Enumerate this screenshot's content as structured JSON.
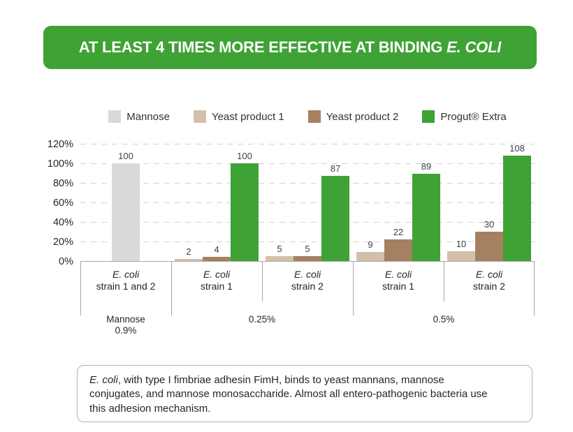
{
  "banner": {
    "prefix": "AT LEAST 4 TIMES MORE EFFECTIVE AT BINDING ",
    "italic": "E. COLI",
    "background": "#3fa235",
    "text_color": "#ffffff"
  },
  "chart_data": {
    "type": "bar",
    "title": "",
    "xlabel": "",
    "ylabel": "",
    "ylim": [
      0,
      120
    ],
    "ytick_step": 20,
    "ytick_suffix": "%",
    "grid": true,
    "legend_position": "top",
    "legend": [
      {
        "name": "Mannose",
        "color": "#d9d9d9"
      },
      {
        "name": "Yeast product 1",
        "color": "#d2c0ab"
      },
      {
        "name": "Yeast product 2",
        "color": "#a58061"
      },
      {
        "name": "Progut® Extra",
        "color": "#3fa235"
      }
    ],
    "groups": [
      {
        "label_italic": "E. coli",
        "label_line2": "strain 1 and 2",
        "bars": [
          {
            "series": "Mannose",
            "value": 100
          }
        ]
      },
      {
        "label_italic": "E. coli",
        "label_line2": "strain 1",
        "bars": [
          {
            "series": "Yeast product 1",
            "value": 2
          },
          {
            "series": "Yeast product 2",
            "value": 4
          },
          {
            "series": "Progut® Extra",
            "value": 100
          }
        ]
      },
      {
        "label_italic": "E. coli",
        "label_line2": "strain 2",
        "bars": [
          {
            "series": "Yeast product 1",
            "value": 5
          },
          {
            "series": "Yeast product 2",
            "value": 5
          },
          {
            "series": "Progut® Extra",
            "value": 87
          }
        ]
      },
      {
        "label_italic": "E. coli",
        "label_line2": "strain 1",
        "bars": [
          {
            "series": "Yeast product 1",
            "value": 9
          },
          {
            "series": "Yeast product 2",
            "value": 22
          },
          {
            "series": "Progut® Extra",
            "value": 89
          }
        ]
      },
      {
        "label_italic": "E. coli",
        "label_line2": "strain 2",
        "bars": [
          {
            "series": "Yeast product 1",
            "value": 10
          },
          {
            "series": "Yeast product 2",
            "value": 30
          },
          {
            "series": "Progut® Extra",
            "value": 108
          }
        ]
      }
    ],
    "super_groups": [
      {
        "label_lines": [
          "Mannose",
          "0.9%"
        ],
        "span": [
          0,
          0
        ]
      },
      {
        "label_lines": [
          "0.25%"
        ],
        "span": [
          1,
          2
        ]
      },
      {
        "label_lines": [
          "0.5%"
        ],
        "span": [
          3,
          4
        ]
      }
    ]
  },
  "footnote": {
    "italic_lead": "E. coli",
    "rest": ", with type I fimbriae adhesin FimH, binds to yeast mannans, mannose conjugates, and mannose monosaccharide. Almost all entero-pathogenic bacteria use this adhesion mechanism."
  }
}
